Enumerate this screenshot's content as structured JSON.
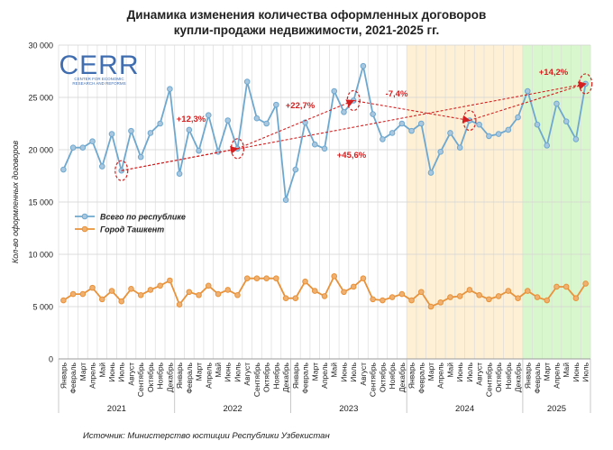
{
  "title_line1": "Динамика изменения количества оформленных договоров",
  "title_line2": "купли-продажи недвижимости, 2021-2025 гг.",
  "logo": {
    "text": "CERR",
    "subtitle_line1": "CENTER FOR ECONOMIC",
    "subtitle_line2": "RESEARCH AND REFORMS"
  },
  "source": "Источник: Министерство юстиции Республики Узбекистан",
  "chart_data": {
    "type": "line",
    "ylabel": "Кол-во оформленных договоров",
    "ylim": [
      0,
      30000
    ],
    "y_ticks": [
      0,
      5000,
      10000,
      15000,
      20000,
      25000,
      30000
    ],
    "y_tick_labels": [
      "0",
      "5 000",
      "10 000",
      "15 000",
      "20 000",
      "25 000",
      "30 000"
    ],
    "grid": true,
    "legend_position": "left",
    "categories": [
      "Январь",
      "Февраль",
      "Март",
      "Апрель",
      "Май",
      "Июнь",
      "Июль",
      "Август",
      "Сентябрь",
      "Октябрь",
      "Ноябрь",
      "Декабрь",
      "Январь",
      "Февраль",
      "Март",
      "Апрель",
      "Май",
      "Июнь",
      "Июль",
      "Август",
      "Сентябрь",
      "Октябрь",
      "Ноябрь",
      "Декабрь",
      "Январь",
      "Февраль",
      "Март",
      "Апрель",
      "Май",
      "Июнь",
      "Июль",
      "Август",
      "Сентябрь",
      "Октябрь",
      "Ноябрь",
      "Декабрь",
      "Январь",
      "Февраль",
      "Март",
      "Апрель",
      "Май",
      "Июнь",
      "Июль",
      "Август",
      "Сентябрь",
      "Октябрь",
      "Ноябрь",
      "Декабрь",
      "Январь",
      "Февраль",
      "Март",
      "Апрель",
      "Май",
      "Июнь",
      "Июль"
    ],
    "years": [
      {
        "label": "2021",
        "start": 0,
        "count": 12
      },
      {
        "label": "2022",
        "start": 12,
        "count": 12
      },
      {
        "label": "2023",
        "start": 24,
        "count": 12
      },
      {
        "label": "2024",
        "start": 36,
        "count": 12
      },
      {
        "label": "2025",
        "start": 48,
        "count": 7
      }
    ],
    "series": [
      {
        "name": "Всего по республике",
        "color": "#6fa8cf",
        "marker_fill": "#a9c8e0",
        "values": [
          18100,
          20200,
          20200,
          20800,
          18400,
          21500,
          18000,
          21800,
          19300,
          21600,
          22500,
          25800,
          17700,
          21900,
          19900,
          23300,
          19800,
          22800,
          20100,
          26500,
          23000,
          22500,
          24300,
          15200,
          18100,
          22600,
          20500,
          20100,
          25600,
          23600,
          24700,
          28000,
          23400,
          21000,
          21600,
          22500,
          21800,
          22500,
          17800,
          19800,
          21600,
          20200,
          22800,
          22400,
          21300,
          21500,
          21900,
          23100,
          25600,
          22400,
          20400,
          24400,
          22700,
          21000,
          26300
        ]
      },
      {
        "name": "Город Ташкент",
        "color": "#e8923a",
        "marker_fill": "#f0b070",
        "values": [
          5600,
          6200,
          6200,
          6800,
          5700,
          6500,
          5500,
          6700,
          6100,
          6600,
          7000,
          7500,
          5200,
          6400,
          6100,
          7000,
          6200,
          6600,
          6100,
          7700,
          7700,
          7700,
          7700,
          5800,
          5800,
          7400,
          6500,
          6000,
          7900,
          6400,
          6900,
          7700,
          5700,
          5600,
          5900,
          6200,
          5600,
          6400,
          5000,
          5400,
          5900,
          6000,
          6600,
          6100,
          5700,
          6000,
          6500,
          5800,
          6500,
          5900,
          5600,
          6900,
          6900,
          5800,
          7200
        ]
      }
    ],
    "shaded_periods": [
      {
        "year": "2024",
        "color": "#fdf0d5"
      },
      {
        "year": "2025",
        "color": "#d9f7cc"
      }
    ],
    "annotations": [
      {
        "text": "+12,3%"
      },
      {
        "text": "+22,7%"
      },
      {
        "text": "-7,4%"
      },
      {
        "text": "+45,6%"
      },
      {
        "text": "+14,2%"
      }
    ]
  }
}
